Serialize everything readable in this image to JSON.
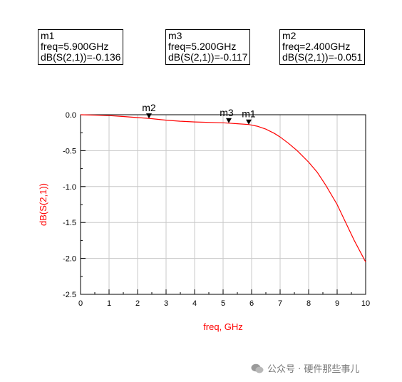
{
  "markers": [
    {
      "name": "m1",
      "line2": "freq=5.900GHz",
      "line3": "dB(S(2,1))=-0.136"
    },
    {
      "name": "m3",
      "line2": "freq=5.200GHz",
      "line3": "dB(S(2,1))=-0.117"
    },
    {
      "name": "m2",
      "line2": "freq=2.400GHz",
      "line3": "dB(S(2,1))=-0.051"
    }
  ],
  "chart_data": {
    "type": "line",
    "xlabel": "freq, GHz",
    "ylabel": "dB(S(2,1))",
    "xlim": [
      0,
      10
    ],
    "ylim": [
      -2.5,
      0.0
    ],
    "xticks": [
      "0",
      "1",
      "2",
      "3",
      "4",
      "5",
      "6",
      "7",
      "8",
      "9",
      "10"
    ],
    "yticks": [
      "0.0",
      "-0.5",
      "-1.0",
      "-1.5",
      "-2.0",
      "-2.5"
    ],
    "grid": true,
    "series": [
      {
        "color": "#ff0000",
        "x": [
          0,
          0.5,
          1,
          1.5,
          2,
          2.4,
          3,
          3.5,
          4,
          4.5,
          5,
          5.2,
          5.5,
          5.9,
          6.2,
          6.5,
          6.8,
          7,
          7.3,
          7.6,
          8,
          8.3,
          8.6,
          9,
          9.3,
          9.6,
          10
        ],
        "y": [
          0,
          -0.005,
          -0.012,
          -0.025,
          -0.04,
          -0.051,
          -0.075,
          -0.09,
          -0.1,
          -0.106,
          -0.112,
          -0.117,
          -0.125,
          -0.136,
          -0.16,
          -0.2,
          -0.26,
          -0.31,
          -0.4,
          -0.5,
          -0.66,
          -0.8,
          -0.98,
          -1.25,
          -1.5,
          -1.75,
          -2.05
        ]
      }
    ],
    "marker_points": [
      {
        "label": "m2",
        "x": 2.4,
        "y": -0.051
      },
      {
        "label": "m3",
        "x": 5.2,
        "y": -0.117
      },
      {
        "label": "m1",
        "x": 5.9,
        "y": -0.136
      }
    ]
  },
  "watermark": "公众号 · 硬件那些事儿"
}
